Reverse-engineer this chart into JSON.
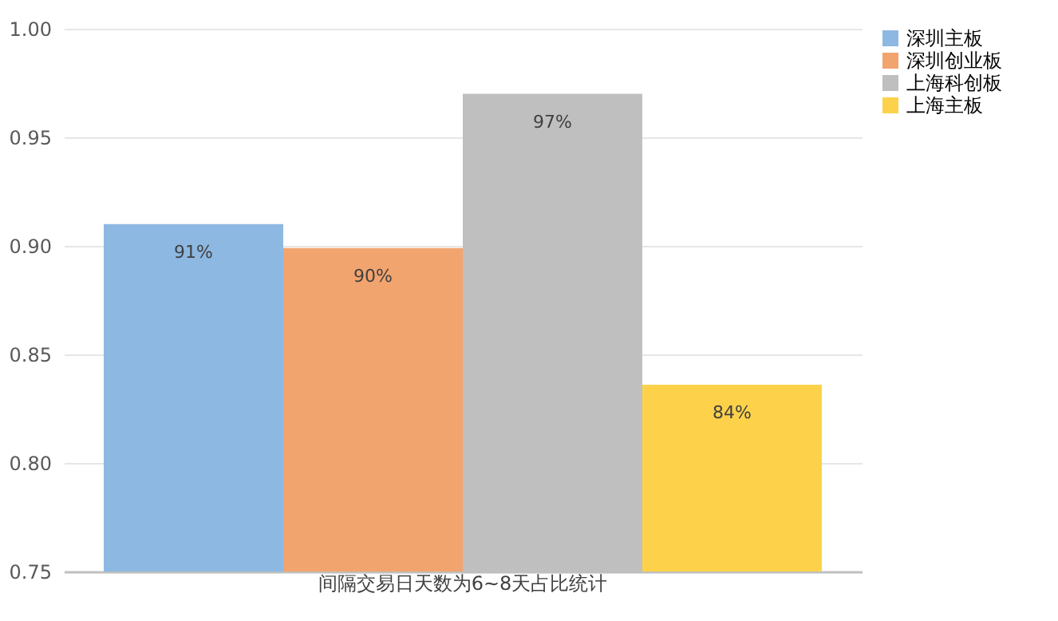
{
  "chart_data": {
    "type": "bar",
    "categories": [
      "间隔交易日天数为6~8天占比统计"
    ],
    "series": [
      {
        "name": "深圳主板",
        "color": "#8db8e2",
        "values": [
          0.91
        ],
        "value_labels": [
          "91%"
        ]
      },
      {
        "name": "深圳创业板",
        "color": "#f2a46f",
        "values": [
          0.899
        ],
        "value_labels": [
          "90%"
        ]
      },
      {
        "name": "上海科创板",
        "color": "#bfbfbf",
        "values": [
          0.97
        ],
        "value_labels": [
          "97%"
        ]
      },
      {
        "name": "上海主板",
        "color": "#fdd24a",
        "values": [
          0.836
        ],
        "value_labels": [
          "84%"
        ]
      }
    ],
    "ylim": [
      0.75,
      1.0
    ],
    "yticks": [
      0.75,
      {
        "value": 0.8,
        "label": "0.80"
      },
      0.85,
      {
        "value": 0.9,
        "label": "0.90"
      },
      0.95,
      {
        "value": 1.0,
        "label": "1.00"
      }
    ],
    "grid": "y",
    "legend": "right"
  }
}
